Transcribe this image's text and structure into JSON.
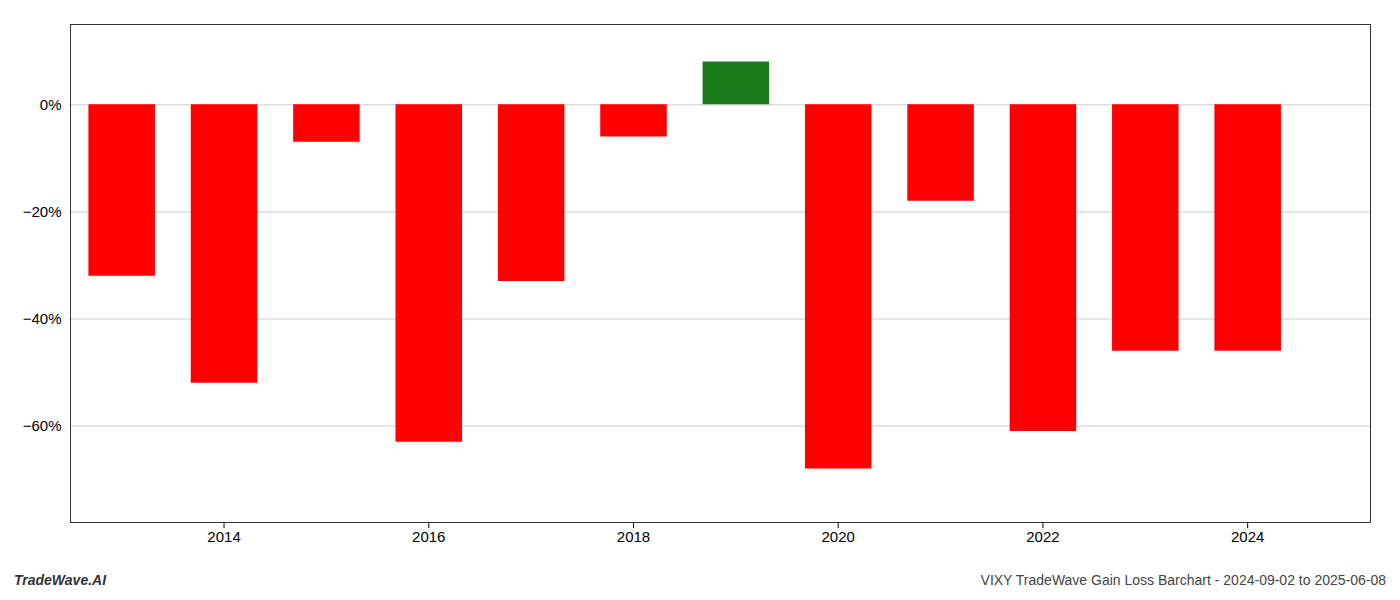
{
  "chart_data": {
    "type": "bar",
    "x": [
      2013,
      2014,
      2015,
      2016,
      2017,
      2018,
      2019,
      2020,
      2021,
      2022,
      2023,
      2024
    ],
    "values": [
      -0.32,
      -0.52,
      -0.07,
      -0.63,
      -0.33,
      -0.06,
      0.08,
      -0.68,
      -0.18,
      -0.61,
      -0.46,
      -0.46
    ],
    "colors": [
      "#ff0000",
      "#ff0000",
      "#ff0000",
      "#ff0000",
      "#ff0000",
      "#ff0000",
      "#1a7a1a",
      "#ff0000",
      "#ff0000",
      "#ff0000",
      "#ff0000",
      "#ff0000"
    ],
    "xlim": [
      2012.5,
      2025.2
    ],
    "xticks": [
      2014,
      2016,
      2018,
      2020,
      2022,
      2024
    ],
    "ylim": [
      -0.78,
      0.15
    ],
    "yticks": [
      {
        "value": 0.0,
        "label": "0%"
      },
      {
        "value": -0.2,
        "label": "−20%"
      },
      {
        "value": -0.4,
        "label": "−40%"
      },
      {
        "value": -0.6,
        "label": "−60%"
      }
    ],
    "grid": true,
    "annotations": [
      "TradeWave.AI",
      "VIXY TradeWave Gain Loss Barchart - 2024-09-02 to 2025-06-08"
    ]
  }
}
